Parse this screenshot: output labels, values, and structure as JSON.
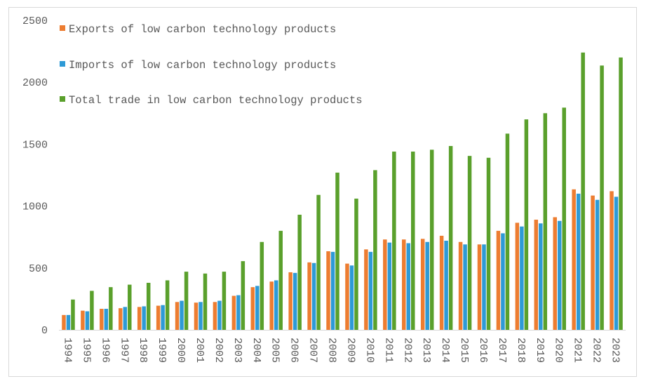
{
  "chart_data": {
    "type": "bar",
    "title": "",
    "xlabel": "",
    "ylabel": "",
    "ylim": [
      0,
      2500
    ],
    "yticks": [
      0,
      500,
      1000,
      1500,
      2000,
      2500
    ],
    "grid": false,
    "legend_position": "top-left",
    "categories": [
      "1994",
      "1995",
      "1996",
      "1997",
      "1998",
      "1999",
      "2000",
      "2001",
      "2002",
      "2003",
      "2004",
      "2005",
      "2006",
      "2007",
      "2008",
      "2009",
      "2010",
      "2011",
      "2012",
      "2013",
      "2014",
      "2015",
      "2016",
      "2017",
      "2018",
      "2019",
      "2020",
      "2021",
      "2022",
      "2023"
    ],
    "series": [
      {
        "name": "Exports of low carbon technology products",
        "color": "#ed7d31",
        "values": [
          120,
          155,
          170,
          175,
          185,
          195,
          225,
          220,
          225,
          275,
          345,
          390,
          465,
          545,
          635,
          535,
          650,
          730,
          730,
          735,
          760,
          710,
          690,
          800,
          865,
          890,
          910,
          1135,
          1085,
          1120
        ]
      },
      {
        "name": "Imports of low carbon technology products",
        "color": "#2e9ad6",
        "values": [
          120,
          150,
          170,
          185,
          190,
          200,
          235,
          225,
          235,
          280,
          355,
          400,
          460,
          540,
          630,
          520,
          630,
          705,
          700,
          710,
          720,
          690,
          690,
          780,
          835,
          860,
          880,
          1100,
          1050,
          1075
        ]
      },
      {
        "name": "Total trade in low carbon technology products",
        "color": "#5aa02c",
        "values": [
          245,
          315,
          345,
          365,
          380,
          400,
          470,
          455,
          470,
          555,
          710,
          800,
          930,
          1090,
          1270,
          1060,
          1290,
          1440,
          1440,
          1455,
          1485,
          1405,
          1390,
          1585,
          1700,
          1750,
          1795,
          2240,
          2135,
          2200
        ]
      }
    ]
  }
}
